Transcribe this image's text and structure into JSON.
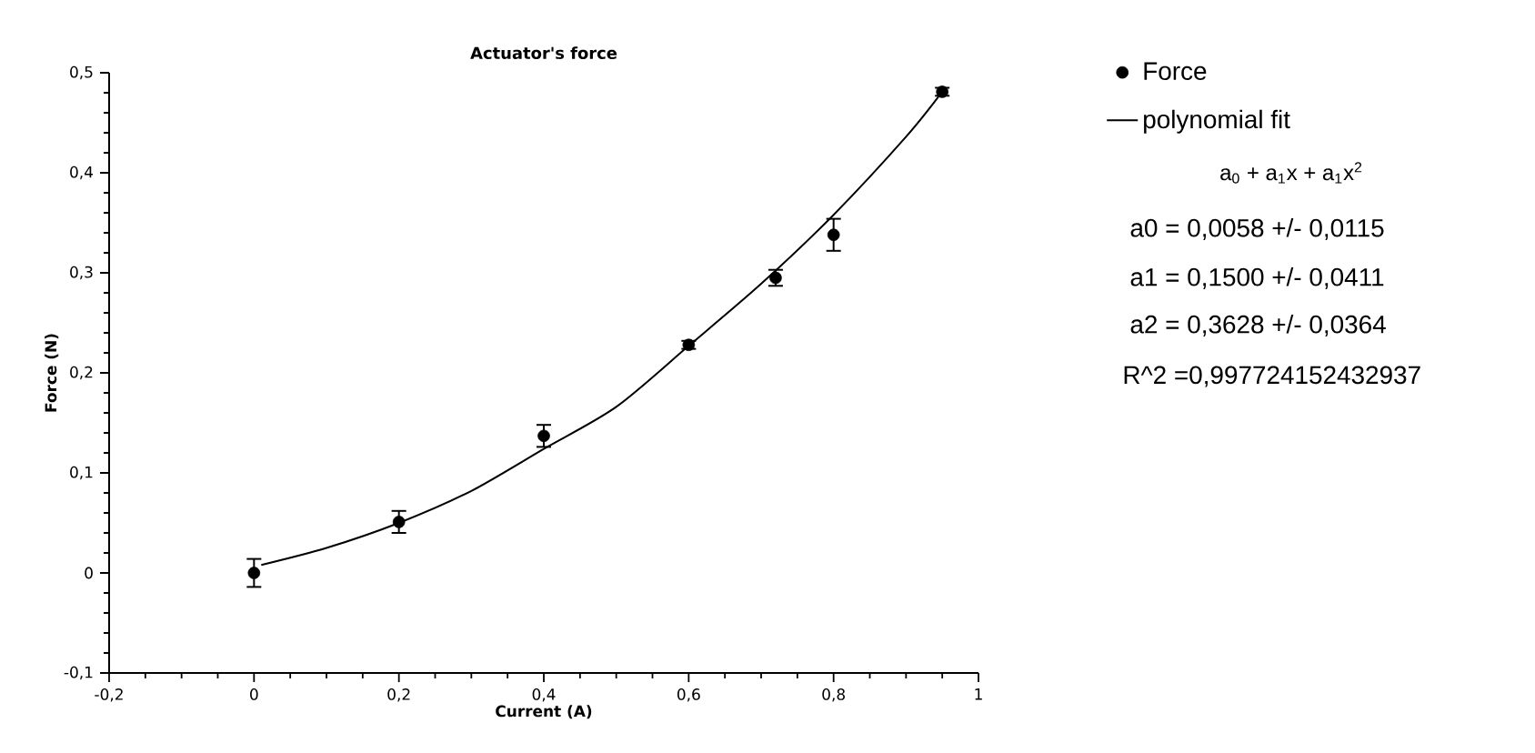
{
  "chart_data": {
    "type": "scatter",
    "title": "Actuator's force",
    "xlabel": "Current (A)",
    "ylabel": "Force (N)",
    "series": [
      {
        "name": "Force",
        "color": "#000000",
        "marker": "circle",
        "x": [
          0,
          0.2,
          0.4,
          0.6,
          0.72,
          0.8,
          0.95
        ],
        "values": [
          0.0,
          0.051,
          0.137,
          0.228,
          0.295,
          0.338,
          0.481
        ],
        "errors": [
          0.014,
          0.011,
          0.011,
          0.004,
          0.008,
          0.016,
          0.004
        ]
      },
      {
        "name": "polynomial fit",
        "type": "line",
        "color": "#000000",
        "marker": "none",
        "line_style": "solid",
        "x": [
          0.01,
          0.1,
          0.2,
          0.3,
          0.4,
          0.5,
          0.6,
          0.7,
          0.8,
          0.9,
          0.95
        ],
        "values": [
          0.008,
          0.025,
          0.05,
          0.082,
          0.124,
          0.166,
          0.227,
          0.289,
          0.358,
          0.436,
          0.481
        ]
      }
    ],
    "xlim": [
      -0.2,
      1
    ],
    "ylim": [
      -0.1,
      0.5
    ],
    "xticks": [
      {
        "value": -0.2,
        "label": "-0,2"
      },
      {
        "value": 0,
        "label": "0"
      },
      {
        "value": 0.2,
        "label": "0,2"
      },
      {
        "value": 0.4,
        "label": "0,4"
      },
      {
        "value": 0.6,
        "label": "0,6"
      },
      {
        "value": 0.8,
        "label": "0,8"
      },
      {
        "value": 1,
        "label": "1"
      }
    ],
    "yticks": [
      {
        "value": -0.1,
        "label": "-0,1"
      },
      {
        "value": 0,
        "label": "0"
      },
      {
        "value": 0.1,
        "label": "0,1"
      },
      {
        "value": 0.2,
        "label": "0,2"
      },
      {
        "value": 0.3,
        "label": "0,3"
      },
      {
        "value": 0.4,
        "label": "0,4"
      },
      {
        "value": 0.5,
        "label": "0,5"
      }
    ],
    "grid": false,
    "legend": "right",
    "annotations": [
      "a$_{0}$ + a$_{1}$x + a$_{1}$x$^{2}$",
      "a0 = 0,0058 +/- 0,0115",
      "a1 = 0,1500 +/- 0,0411",
      "a2 = 0,3628 +/- 0,0364",
      "R^2 =0,997724152432937"
    ]
  }
}
